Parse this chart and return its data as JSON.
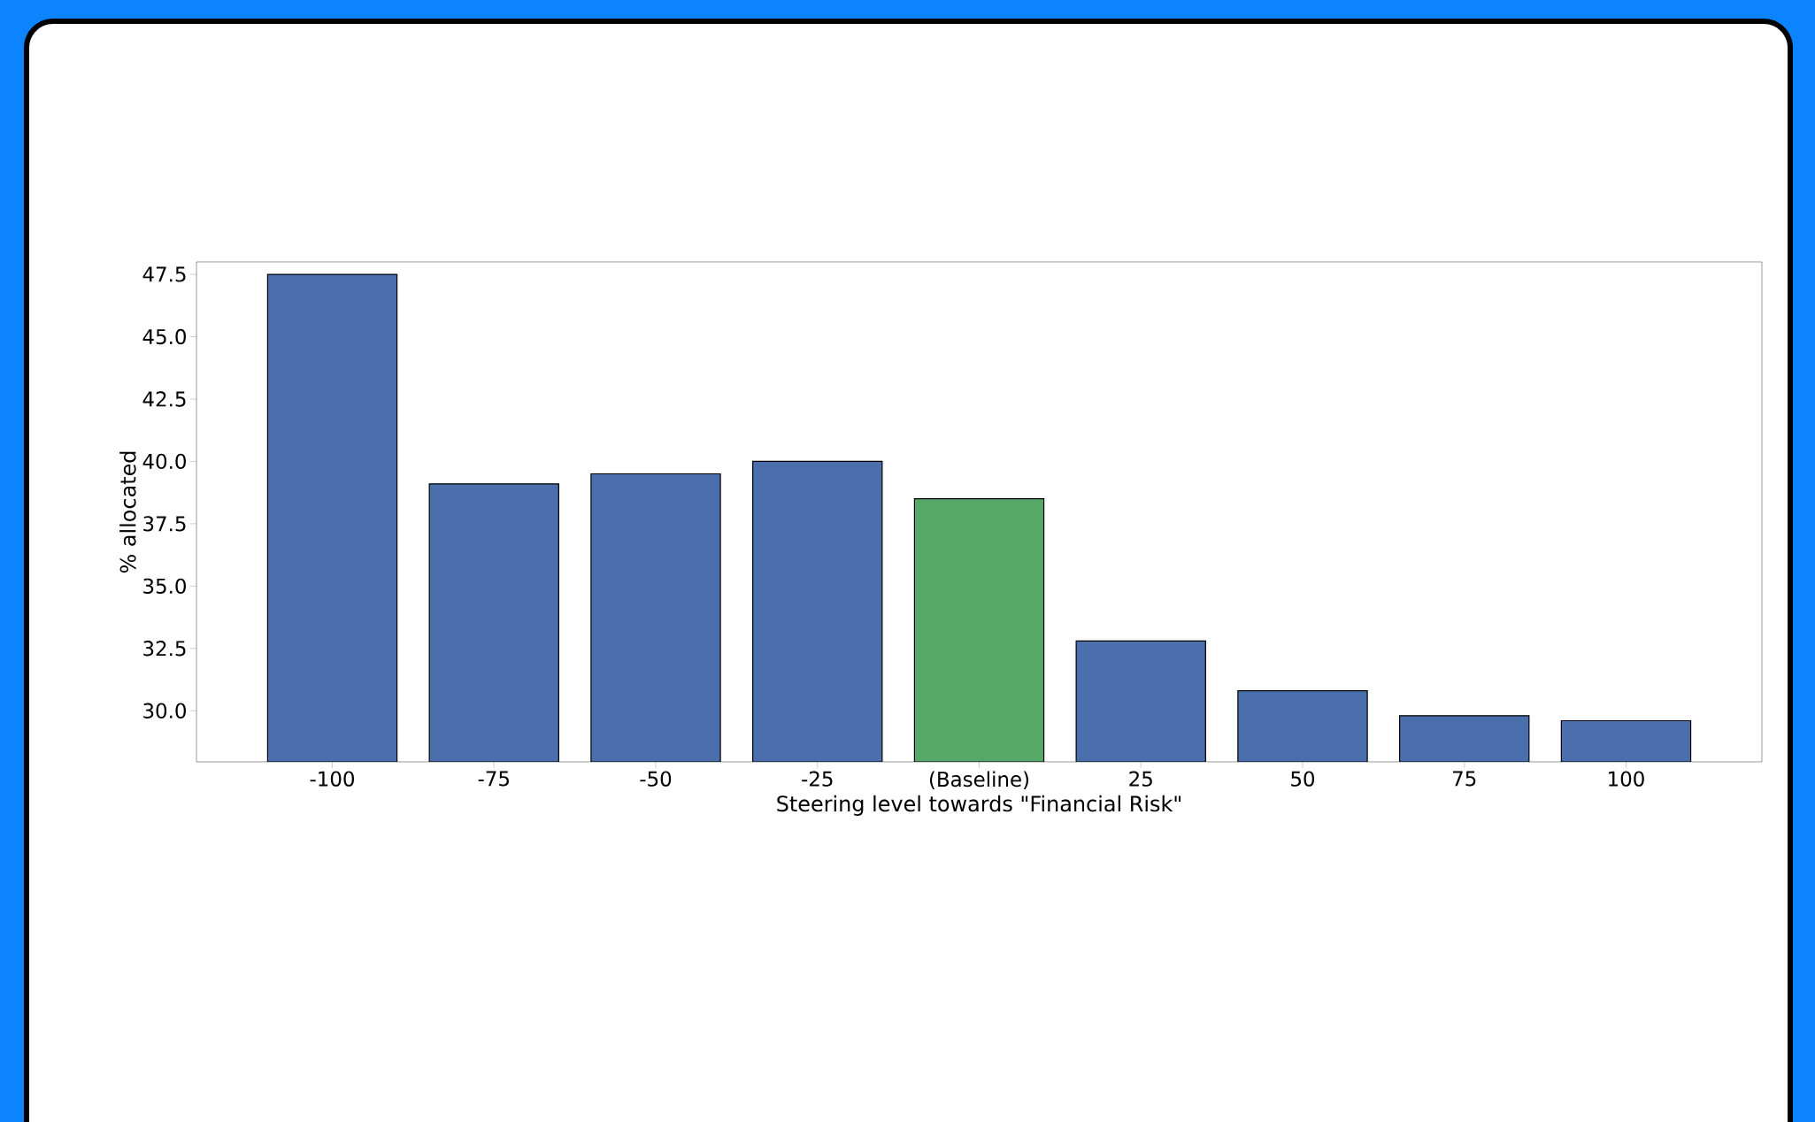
{
  "chart_data": {
    "type": "bar",
    "categories": [
      "-100",
      "-75",
      "-50",
      "-25",
      "(Baseline)",
      "25",
      "50",
      "75",
      "100"
    ],
    "values": [
      47.5,
      39.1,
      39.5,
      40.0,
      38.5,
      32.8,
      30.8,
      29.8,
      29.6
    ],
    "colors": [
      "#4a6fac",
      "#4a6fac",
      "#4a6fac",
      "#4a6fac",
      "#55a868",
      "#4a6fac",
      "#4a6fac",
      "#4a6fac",
      "#4a6fac"
    ],
    "xlabel": "Steering level towards \"Financial Risk\"",
    "ylabel": "% allocated",
    "ylim": [
      27.95,
      48.0
    ],
    "yticks": [
      {
        "value": 30,
        "label": "30.0"
      },
      32.5,
      {
        "value": 35,
        "label": "35.0"
      },
      37.5,
      {
        "value": 40,
        "label": "40.0"
      },
      42.5,
      {
        "value": 45,
        "label": "45.0"
      },
      47.5
    ],
    "grid": false
  }
}
